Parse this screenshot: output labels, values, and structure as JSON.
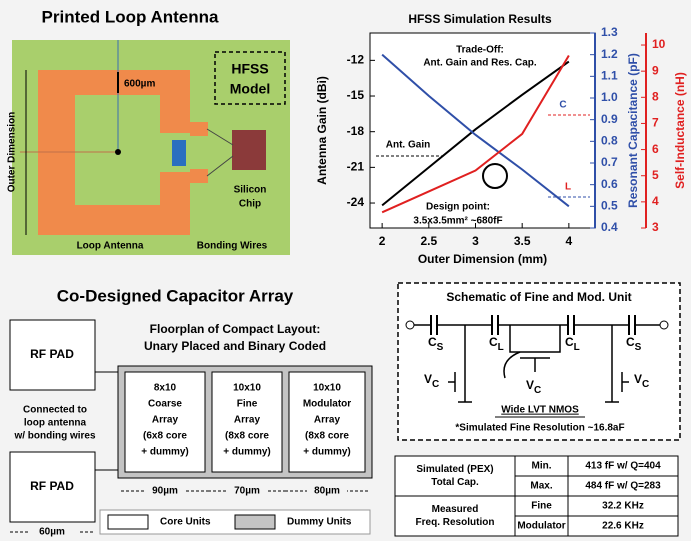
{
  "antenna": {
    "title": "Printed Loop Antenna",
    "spacing": "600µm",
    "model": [
      "HFSS",
      "Model"
    ],
    "outer_dimension": "Outer Dimension",
    "loop": "Loop Antenna",
    "bonding": "Bonding Wires",
    "chip": [
      "Silicon",
      "Chip"
    ]
  },
  "chart_data": {
    "type": "line",
    "title": "HFSS Simulation Results",
    "x": [
      2,
      2.5,
      3,
      3.5,
      4
    ],
    "xlim": [
      1.87,
      4.28
    ],
    "xticks": [
      2,
      2.5,
      3,
      3.5,
      4
    ],
    "xlabel": "Outer Dimension (mm)",
    "ylabel": "Antenna Gain (dBi)",
    "ylim": [
      -26.1,
      -9.7
    ],
    "yticks": [
      -24,
      -21,
      -18,
      -15,
      -12
    ],
    "y2label": "Resonant Capacitance (pF)",
    "y2lim": [
      0.4,
      1.3
    ],
    "y2ticks": [
      0.4,
      0.5,
      0.6,
      0.7,
      0.8,
      0.9,
      {
        "value": 1,
        "label": "1.0"
      },
      1.1,
      1.2,
      1.3
    ],
    "y3label": "Self-Inductance (nH)",
    "y3lim": [
      3,
      10.46
    ],
    "y3ticks": [
      3,
      4,
      5,
      6,
      7,
      8,
      9,
      10
    ],
    "series": [
      {
        "name": "Ant. Gain",
        "color": "#000000",
        "values": [
          -24.2,
          -21,
          -17.8,
          -14.9,
          -12.1
        ]
      },
      {
        "name": "C",
        "color": "#2f4fa8",
        "axis": "y2",
        "values": [
          1.2,
          1.01,
          0.83,
          0.67,
          0.5
        ]
      },
      {
        "name": "L",
        "color": "#e02020",
        "axis": "y3",
        "values": [
          3.6,
          4.4,
          5.2,
          6.6,
          9.6
        ]
      }
    ],
    "annotations": [
      "Trade-Off:",
      "Ant. Gain and Res. Cap.",
      "Design point:",
      "3.5x3.5mm² ~680fF"
    ]
  },
  "capacitor": {
    "title": "Co-Designed Capacitor Array",
    "pads": [
      "RF PAD",
      "RF PAD"
    ],
    "connection": [
      "Connected to",
      "loop antenna",
      "w/ bonding wires"
    ],
    "floorplan": [
      "Floorplan of Compact Layout:",
      "Unary Placed and Binary Coded"
    ],
    "arrays": [
      {
        "lines": [
          "8x10",
          "Coarse",
          "Array",
          "(6x8 core",
          "+ dummy)"
        ],
        "width": "90µm"
      },
      {
        "lines": [
          "10x10",
          "Fine",
          "Array",
          "(8x8 core",
          "+ dummy)"
        ],
        "width": "70µm"
      },
      {
        "lines": [
          "10x10",
          "Modulator",
          "Array",
          "(8x8 core",
          "+ dummy)"
        ],
        "width": "80µm"
      }
    ],
    "pad_width": "60µm",
    "legend": [
      "Core Units",
      "Dummy Units"
    ]
  },
  "schematic": {
    "title": "Schematic of Fine and Mod. Unit",
    "caps": [
      {
        "base": "C",
        "sub": "S"
      },
      {
        "base": "C",
        "sub": "L"
      },
      {
        "base": "C",
        "sub": "L"
      },
      {
        "base": "C",
        "sub": "S"
      }
    ],
    "controls": [
      {
        "base": "V",
        "sub": "C"
      },
      {
        "base": "V",
        "sub": "C"
      },
      {
        "base": "V",
        "sub": "C"
      }
    ],
    "device": "Wide LVT NMOS",
    "note": "*Simulated Fine Resolution ~16.8aF"
  },
  "table": {
    "groups": [
      {
        "label": [
          "Simulated (PEX)",
          "Total Cap."
        ],
        "rows": [
          [
            "Min.",
            "413 fF w/ Q=404"
          ],
          [
            "Max.",
            "484 fF w/ Q=283"
          ]
        ]
      },
      {
        "label": [
          "Measured",
          "Freq. Resolution"
        ],
        "rows": [
          [
            "Fine",
            "32.2 KHz"
          ],
          [
            "Modulator",
            "22.6 KHz"
          ]
        ]
      }
    ]
  }
}
